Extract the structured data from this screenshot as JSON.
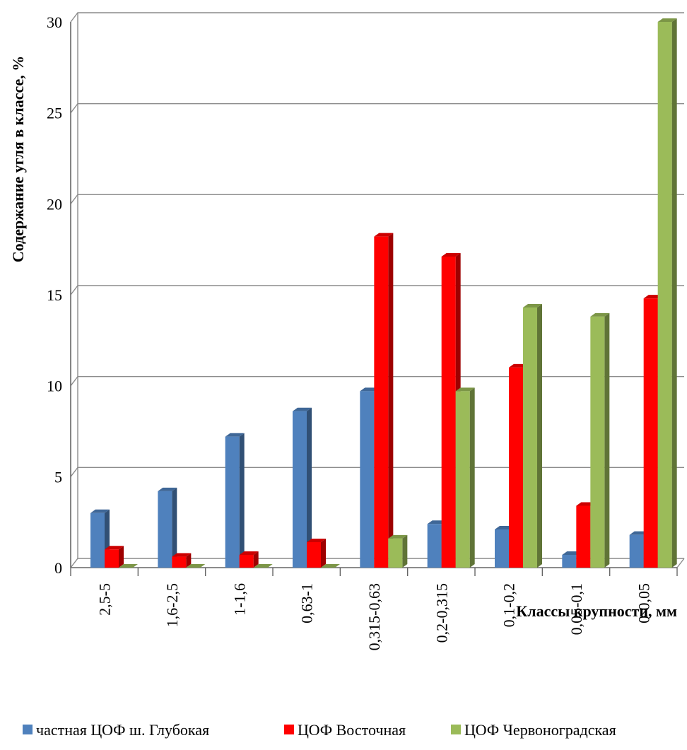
{
  "chart_data": {
    "type": "bar",
    "title": "",
    "xlabel": "Классы крупности, мм",
    "ylabel": "Содержание угля в классе, %",
    "ylim": [
      0,
      30
    ],
    "yticks": [
      "0",
      "5",
      "10",
      "15",
      "20",
      "25",
      "30"
    ],
    "grid": true,
    "legend_position": "bottom",
    "categories": [
      "2,5-5",
      "1,6-2,5",
      "1-1,6",
      "0,63-1",
      "0,315-0,63",
      "0,2-0,315",
      "0,1-0,2",
      "0,05-0,1",
      "0-0,05"
    ],
    "series": [
      {
        "name": "частная ЦОФ ш. Глубокая",
        "color": "#4f81bd",
        "values": [
          3.0,
          4.2,
          7.2,
          8.6,
          9.7,
          2.4,
          2.1,
          0.7,
          1.8
        ]
      },
      {
        "name": "ЦОФ Восточная",
        "color": "#ff0000",
        "values": [
          1.0,
          0.6,
          0.7,
          1.4,
          18.2,
          17.1,
          11.0,
          3.4,
          14.8
        ]
      },
      {
        "name": "ЦОФ Червоноградская",
        "color": "#9bbb59",
        "values": [
          0.0,
          0.0,
          0.0,
          0.0,
          1.6,
          9.7,
          14.3,
          13.8,
          30.0
        ]
      }
    ]
  }
}
